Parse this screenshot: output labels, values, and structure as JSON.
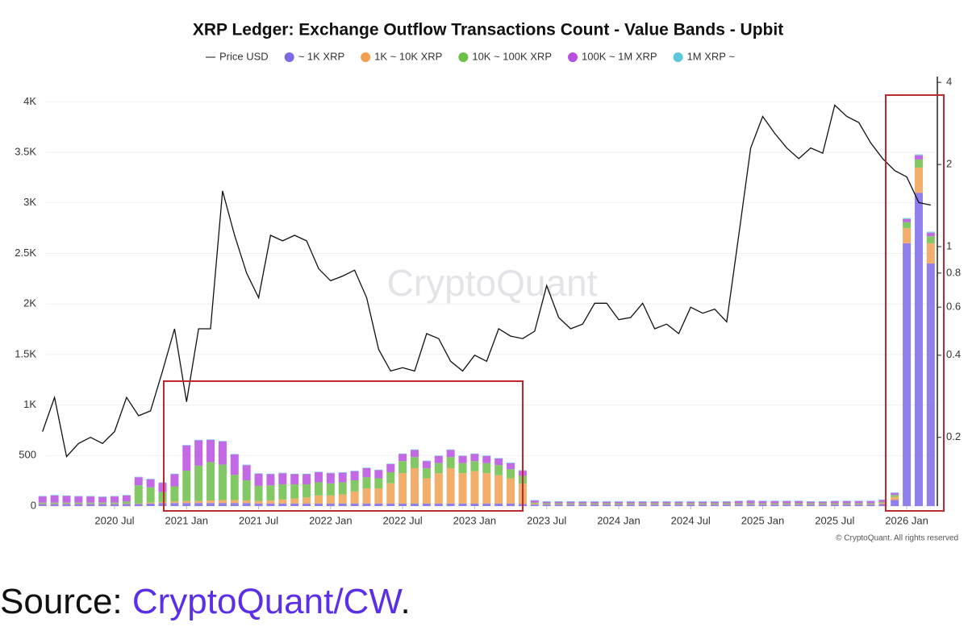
{
  "chart_data": {
    "type": "bar",
    "title": "XRP Ledger: Exchange Outflow Transactions Count - Value Bands - Upbit",
    "watermark": "CryptoQuant",
    "copyright": "© CryptoQuant. All rights reserved",
    "legend": "top",
    "grid": true,
    "stacked": true,
    "y2scale": "log",
    "x": [
      "2020-01",
      "2020-02",
      "2020-03",
      "2020-04",
      "2020-05",
      "2020-06",
      "2020-07",
      "2020-08",
      "2020-09",
      "2020-10",
      "2020-11",
      "2020-12",
      "2021-01",
      "2021-02",
      "2021-03",
      "2021-04",
      "2021-05",
      "2021-06",
      "2021-07",
      "2021-08",
      "2021-09",
      "2021-10",
      "2021-11",
      "2021-12",
      "2022-01",
      "2022-02",
      "2022-03",
      "2022-04",
      "2022-05",
      "2022-06",
      "2022-07",
      "2022-08",
      "2022-09",
      "2022-10",
      "2022-11",
      "2022-12",
      "2023-01",
      "2023-02",
      "2023-03",
      "2023-04",
      "2023-05",
      "2023-06",
      "2023-07",
      "2023-08",
      "2023-09",
      "2023-10",
      "2023-11",
      "2023-12",
      "2024-01",
      "2024-02",
      "2024-03",
      "2024-04",
      "2024-05",
      "2024-06",
      "2024-07",
      "2024-08",
      "2024-09",
      "2024-10",
      "2024-11",
      "2024-12",
      "2025-01",
      "2025-02",
      "2025-03",
      "2025-04",
      "2025-05",
      "2025-06",
      "2025-07",
      "2025-08",
      "2025-09",
      "2025-10",
      "2025-11",
      "2025-12",
      "2026-01",
      "2026-02",
      "2026-03"
    ],
    "xticks": [
      {
        "value": "2020-07",
        "label": "2020 Jul"
      },
      {
        "value": "2021-01",
        "label": "2021 Jan"
      },
      {
        "value": "2021-07",
        "label": "2021 Jul"
      },
      {
        "value": "2022-01",
        "label": "2022 Jan"
      },
      {
        "value": "2022-07",
        "label": "2022 Jul"
      },
      {
        "value": "2023-01",
        "label": "2023 Jan"
      },
      {
        "value": "2023-07",
        "label": "2023 Jul"
      },
      {
        "value": "2024-01",
        "label": "2024 Jan"
      },
      {
        "value": "2024-07",
        "label": "2024 Jul"
      },
      {
        "value": "2025-01",
        "label": "2025 Jan"
      },
      {
        "value": "2025-07",
        "label": "2025 Jul"
      },
      {
        "value": "2026-01",
        "label": "2026 Jan"
      }
    ],
    "ylim": [
      0,
      4250
    ],
    "yticks": [
      0,
      500,
      {
        "value": 1000,
        "label": "1K"
      },
      {
        "value": 1500,
        "label": "1.5K"
      },
      {
        "value": 2000,
        "label": "2K"
      },
      {
        "value": 2500,
        "label": "2.5K"
      },
      {
        "value": 3000,
        "label": "3K"
      },
      {
        "value": 3500,
        "label": "3.5K"
      },
      {
        "value": 4000,
        "label": "4K"
      }
    ],
    "y2lim": [
      0.112,
      4.2
    ],
    "y2ticks": [
      0.2,
      0.4,
      0.6,
      0.8,
      1,
      2,
      4
    ],
    "series": [
      {
        "name": "Price USD",
        "type": "line",
        "axis": "y2",
        "color": "#111111",
        "values": [
          0.21,
          0.28,
          0.17,
          0.19,
          0.2,
          0.19,
          0.21,
          0.28,
          0.24,
          0.25,
          0.35,
          0.5,
          0.27,
          0.5,
          0.5,
          1.6,
          1.1,
          0.8,
          0.65,
          1.1,
          1.05,
          1.1,
          1.05,
          0.83,
          0.75,
          0.78,
          0.82,
          0.65,
          0.42,
          0.35,
          0.36,
          0.35,
          0.48,
          0.46,
          0.38,
          0.35,
          0.4,
          0.38,
          0.5,
          0.47,
          0.46,
          0.49,
          0.72,
          0.55,
          0.5,
          0.52,
          0.62,
          0.62,
          0.54,
          0.55,
          0.62,
          0.5,
          0.52,
          0.48,
          0.6,
          0.57,
          0.59,
          0.53,
          1.1,
          2.3,
          3.0,
          2.6,
          2.3,
          2.1,
          2.3,
          2.2,
          3.3,
          3.0,
          2.85,
          2.4,
          2.1,
          1.9,
          1.8,
          1.45,
          1.42
        ]
      },
      {
        "name": "~ 1K XRP",
        "color": "#7b6ae8",
        "values": [
          20,
          20,
          20,
          20,
          20,
          20,
          20,
          20,
          20,
          25,
          30,
          30,
          30,
          30,
          30,
          30,
          30,
          30,
          25,
          25,
          25,
          25,
          25,
          25,
          25,
          25,
          25,
          25,
          25,
          25,
          25,
          25,
          25,
          25,
          25,
          25,
          25,
          25,
          25,
          25,
          20,
          15,
          15,
          15,
          15,
          15,
          15,
          15,
          15,
          15,
          15,
          15,
          15,
          15,
          15,
          15,
          15,
          15,
          15,
          15,
          15,
          15,
          15,
          15,
          15,
          15,
          15,
          15,
          15,
          15,
          20,
          60,
          2600,
          3100,
          2400
        ]
      },
      {
        "name": "1K ~ 10K XRP",
        "color": "#f0a050",
        "values": [
          5,
          5,
          5,
          5,
          5,
          5,
          5,
          5,
          5,
          10,
          10,
          15,
          20,
          20,
          25,
          30,
          30,
          25,
          25,
          30,
          40,
          50,
          60,
          80,
          80,
          90,
          120,
          150,
          150,
          200,
          300,
          350,
          250,
          300,
          350,
          300,
          320,
          300,
          280,
          250,
          200,
          10,
          5,
          5,
          5,
          5,
          5,
          5,
          5,
          5,
          5,
          5,
          5,
          5,
          5,
          5,
          5,
          5,
          5,
          5,
          5,
          5,
          5,
          5,
          5,
          5,
          5,
          5,
          5,
          5,
          10,
          30,
          150,
          250,
          200
        ]
      },
      {
        "name": "10K ~ 100K XRP",
        "color": "#6cc04a",
        "values": [
          10,
          10,
          10,
          10,
          10,
          10,
          10,
          20,
          180,
          150,
          100,
          150,
          300,
          350,
          380,
          350,
          250,
          200,
          150,
          150,
          150,
          140,
          130,
          130,
          120,
          120,
          110,
          110,
          100,
          110,
          120,
          110,
          100,
          100,
          110,
          100,
          100,
          100,
          100,
          90,
          80,
          10,
          8,
          8,
          8,
          8,
          8,
          8,
          8,
          8,
          8,
          8,
          8,
          8,
          8,
          8,
          8,
          8,
          8,
          8,
          8,
          8,
          8,
          8,
          8,
          8,
          8,
          8,
          8,
          8,
          10,
          20,
          60,
          80,
          70
        ]
      },
      {
        "name": "100K ~ 1M XRP",
        "color": "#b84fe0",
        "values": [
          60,
          70,
          65,
          60,
          60,
          55,
          60,
          60,
          80,
          80,
          90,
          120,
          250,
          250,
          220,
          230,
          200,
          150,
          120,
          110,
          110,
          100,
          100,
          100,
          100,
          95,
          90,
          90,
          80,
          80,
          70,
          70,
          70,
          70,
          70,
          70,
          70,
          70,
          65,
          60,
          50,
          20,
          15,
          15,
          15,
          15,
          15,
          15,
          15,
          15,
          15,
          15,
          15,
          15,
          15,
          15,
          15,
          15,
          20,
          25,
          20,
          20,
          20,
          20,
          15,
          15,
          20,
          20,
          20,
          20,
          20,
          20,
          30,
          40,
          35
        ]
      },
      {
        "name": "1M XRP ~",
        "color": "#5bc8dc",
        "values": [
          5,
          5,
          5,
          5,
          5,
          5,
          5,
          5,
          5,
          5,
          5,
          5,
          5,
          5,
          5,
          5,
          5,
          5,
          5,
          5,
          5,
          5,
          5,
          5,
          5,
          5,
          5,
          5,
          5,
          5,
          5,
          5,
          5,
          5,
          5,
          5,
          5,
          5,
          5,
          5,
          5,
          5,
          5,
          5,
          5,
          5,
          5,
          5,
          5,
          5,
          5,
          5,
          5,
          5,
          5,
          5,
          5,
          5,
          5,
          5,
          5,
          5,
          5,
          5,
          5,
          5,
          5,
          5,
          5,
          5,
          5,
          5,
          10,
          10,
          10
        ]
      }
    ]
  },
  "source": {
    "prefix": "Source: ",
    "link": "CryptoQuant/CW",
    "suffix": "."
  }
}
